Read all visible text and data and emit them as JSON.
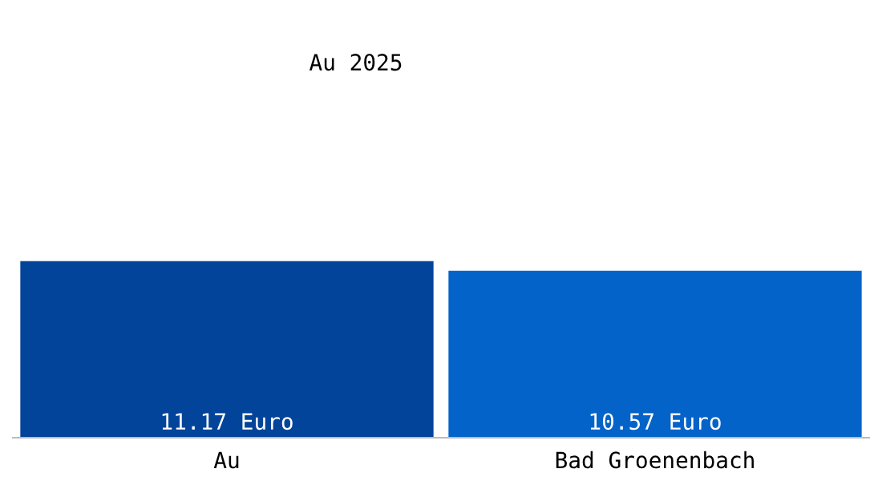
{
  "chart_data": {
    "type": "bar",
    "title": "Au 2025",
    "categories": [
      "Au",
      "Bad Groenenbach"
    ],
    "values": [
      11.17,
      10.57
    ],
    "colors": [
      "#02449a",
      "#0363c9"
    ],
    "value_labels": [
      "11.17 Euro",
      "10.57 Euro"
    ],
    "grid": false,
    "legend": false
  }
}
